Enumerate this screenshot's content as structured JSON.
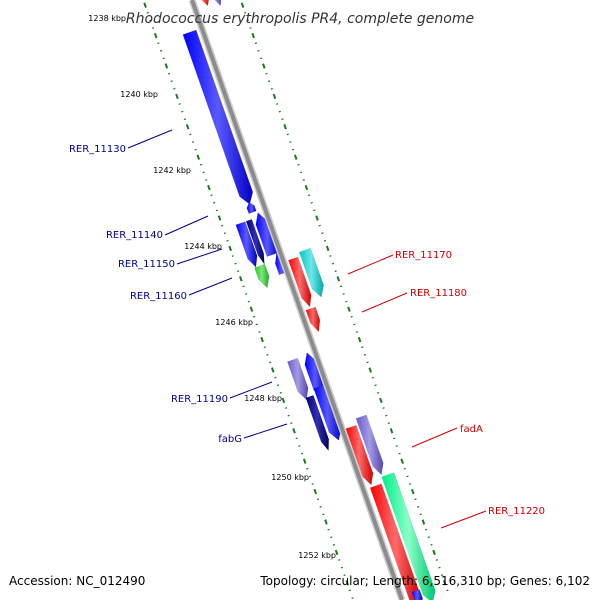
{
  "title": "Rhodococcus erythropolis PR4, complete genome",
  "ruler": {
    "tick_labels": [
      "1238 kbp",
      "1240 kbp",
      "1242 kbp",
      "1244 kbp",
      "1246 kbp",
      "1248 kbp",
      "1250 kbp",
      "1252 kbp"
    ]
  },
  "genes": {
    "left": [
      "RER_11130",
      "RER_11140",
      "RER_11150",
      "RER_11160",
      "RER_11190",
      "fabG"
    ],
    "right": [
      "RER_11170",
      "RER_11180",
      "fadA",
      "RER_11220"
    ]
  },
  "colors": {
    "left_label": "#00008b",
    "right_label": "#cc0000",
    "backbone": "#8c8c8c",
    "tick_marks": "#1a7a1a"
  },
  "footer": {
    "accession": "Accession: NC_012490",
    "summary": "Topology: circular; Length: 6,516,310 bp; Genes: 6,102"
  }
}
